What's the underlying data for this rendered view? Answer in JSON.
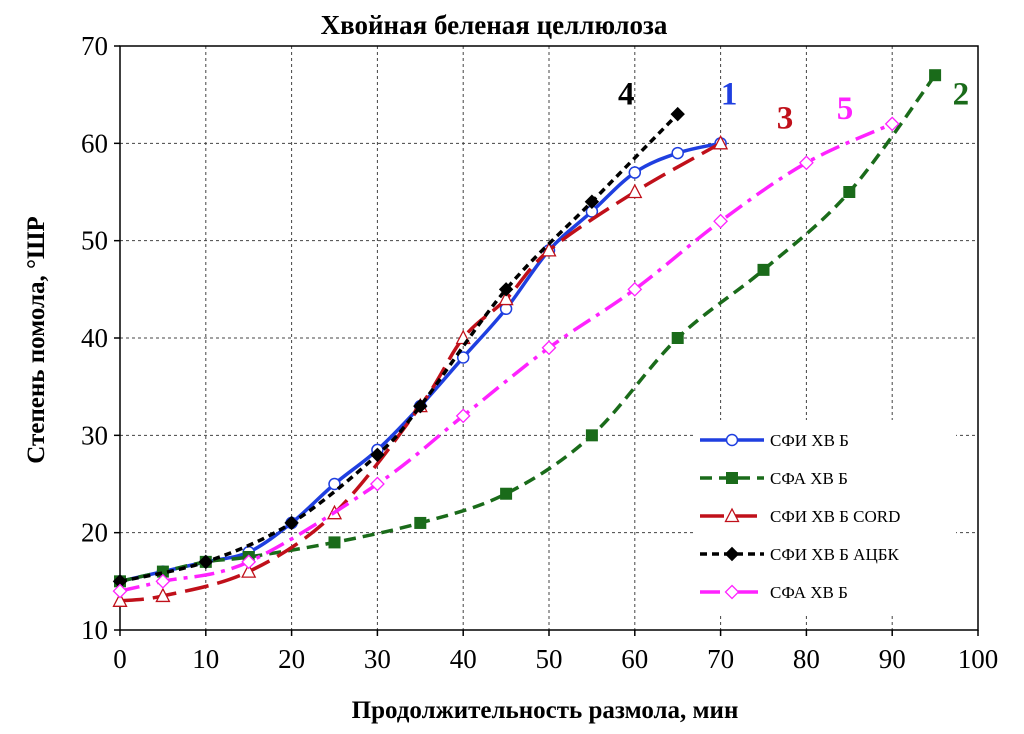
{
  "chart_data": {
    "type": "line",
    "title": "Хвойная беленая целлюлоза",
    "xlabel": "Продолжительность размола, мин",
    "ylabel": "Степень помола, °ШР",
    "xlim": [
      0,
      100
    ],
    "ylim": [
      10,
      70
    ],
    "xticks": [
      0,
      10,
      20,
      30,
      40,
      50,
      60,
      70,
      80,
      90,
      100
    ],
    "yticks": [
      10,
      20,
      30,
      40,
      50,
      60,
      70
    ],
    "grid": true,
    "legend_position": "lower-right",
    "series": [
      {
        "name": "СФИ ХВ Б",
        "curve_label": "1",
        "color": "#1f3fe0",
        "line_style": "solid",
        "marker": "open-circle",
        "x": [
          0,
          5,
          10,
          15,
          20,
          25,
          30,
          35,
          40,
          45,
          50,
          55,
          60,
          65,
          70
        ],
        "y": [
          15,
          16,
          17,
          18,
          21,
          25,
          28.5,
          33,
          38,
          43,
          49,
          53,
          57,
          59,
          60
        ]
      },
      {
        "name": "СФА ХВ Б",
        "curve_label": "2",
        "color": "#1a6b1a",
        "line_style": "dashed",
        "marker": "filled-square",
        "x": [
          0,
          5,
          10,
          15,
          25,
          35,
          45,
          55,
          65,
          75,
          85,
          95
        ],
        "y": [
          15,
          16,
          17,
          17.5,
          19,
          21,
          24,
          30,
          40,
          47,
          55,
          67
        ]
      },
      {
        "name": "СФИ ХВ Б CORD",
        "curve_label": "3",
        "color": "#c0101a",
        "line_style": "long-dash",
        "marker": "open-triangle",
        "x": [
          0,
          5,
          15,
          25,
          35,
          40,
          45,
          50,
          60,
          70
        ],
        "y": [
          13,
          13.5,
          16,
          22,
          33,
          40,
          44,
          49,
          55,
          60
        ]
      },
      {
        "name": "СФИ ХВ Б АЦБК",
        "curve_label": "4",
        "color": "#000000",
        "line_style": "short-dash",
        "marker": "filled-diamond",
        "x": [
          0,
          10,
          20,
          30,
          35,
          45,
          55,
          65
        ],
        "y": [
          15,
          17,
          21,
          28,
          33,
          45,
          54,
          63
        ]
      },
      {
        "name": "СФА ХВ Б",
        "curve_label": "5",
        "color": "#ff22ff",
        "line_style": "dash-dot",
        "marker": "open-diamond",
        "x": [
          0,
          5,
          15,
          30,
          40,
          50,
          60,
          70,
          80,
          90
        ],
        "y": [
          14,
          15,
          17,
          25,
          32,
          39,
          45,
          52,
          58,
          62
        ]
      }
    ],
    "curve_label_positions": [
      {
        "label": "1",
        "x": 71,
        "y": 64
      },
      {
        "label": "2",
        "x": 98,
        "y": 64
      },
      {
        "label": "3",
        "x": 77.5,
        "y": 61.5
      },
      {
        "label": "4",
        "x": 59,
        "y": 64
      },
      {
        "label": "5",
        "x": 84.5,
        "y": 62.5
      }
    ]
  }
}
